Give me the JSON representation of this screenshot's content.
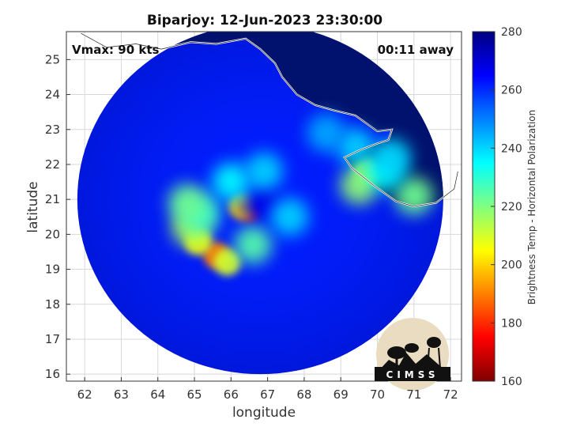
{
  "chart_data": {
    "type": "heatmap",
    "title": "Biparjoy: 12-Jun-2023 23:30:00",
    "xlabel": "longitude",
    "ylabel": "latitude",
    "xlim": [
      61.5,
      72.3
    ],
    "ylim": [
      15.8,
      25.8
    ],
    "x_ticks": [
      62,
      63,
      64,
      65,
      66,
      67,
      68,
      69,
      70,
      71,
      72
    ],
    "y_ticks": [
      16,
      17,
      18,
      19,
      20,
      21,
      22,
      23,
      24,
      25
    ],
    "grid": true,
    "annotations": {
      "vmax": "Vmax: 90 kts",
      "time_away": "00:11 away"
    },
    "colorbar": {
      "label": "Brightness Temp - Horizontal Polarization",
      "min": 160,
      "max": 280,
      "ticks": [
        160,
        180,
        200,
        220,
        240,
        260,
        280
      ],
      "colormap": [
        "#800000",
        "#ff0000",
        "#ff8000",
        "#ffff00",
        "#80ff80",
        "#00ffff",
        "#0080ff",
        "#0000ff",
        "#000080"
      ]
    },
    "swath": {
      "center": [
        66.8,
        21.0
      ],
      "radius_deg": 5.0,
      "background_value": 262
    },
    "features": [
      {
        "lon": 66.5,
        "lat": 20.6,
        "value": 175
      },
      {
        "lon": 66.3,
        "lat": 20.8,
        "value": 200
      },
      {
        "lon": 66.8,
        "lat": 20.9,
        "value": 268
      },
      {
        "lon": 65.6,
        "lat": 19.4,
        "value": 190
      },
      {
        "lon": 65.1,
        "lat": 19.8,
        "value": 205
      },
      {
        "lon": 64.9,
        "lat": 20.2,
        "value": 215
      },
      {
        "lon": 65.9,
        "lat": 19.2,
        "value": 210
      },
      {
        "lon": 66.6,
        "lat": 19.7,
        "value": 225
      },
      {
        "lon": 65.2,
        "lat": 20.6,
        "value": 228
      },
      {
        "lon": 64.8,
        "lat": 20.9,
        "value": 222
      },
      {
        "lon": 66.0,
        "lat": 21.5,
        "value": 235
      },
      {
        "lon": 66.9,
        "lat": 21.8,
        "value": 240
      },
      {
        "lon": 67.6,
        "lat": 20.5,
        "value": 240
      },
      {
        "lon": 69.7,
        "lat": 21.8,
        "value": 210
      },
      {
        "lon": 69.5,
        "lat": 21.4,
        "value": 218
      },
      {
        "lon": 71.0,
        "lat": 21.1,
        "value": 222
      },
      {
        "lon": 70.2,
        "lat": 21.8,
        "value": 235
      },
      {
        "lon": 69.4,
        "lat": 22.5,
        "value": 240
      },
      {
        "lon": 70.4,
        "lat": 22.2,
        "value": 240
      },
      {
        "lon": 68.6,
        "lat": 22.9,
        "value": 245
      }
    ],
    "coastline": [
      [
        61.9,
        25.75
      ],
      [
        62.6,
        25.35
      ],
      [
        63.4,
        25.45
      ],
      [
        64.1,
        25.3
      ],
      [
        64.9,
        25.5
      ],
      [
        65.6,
        25.45
      ],
      [
        66.4,
        25.6
      ],
      [
        66.8,
        25.3
      ],
      [
        67.2,
        24.9
      ],
      [
        67.4,
        24.5
      ],
      [
        67.8,
        24.0
      ],
      [
        68.3,
        23.7
      ],
      [
        68.8,
        23.55
      ],
      [
        69.4,
        23.4
      ],
      [
        70.0,
        22.95
      ],
      [
        70.4,
        23.0
      ],
      [
        70.3,
        22.7
      ],
      [
        70.0,
        22.6
      ],
      [
        69.5,
        22.4
      ],
      [
        69.1,
        22.2
      ],
      [
        69.3,
        21.9
      ],
      [
        69.9,
        21.4
      ],
      [
        70.5,
        20.95
      ],
      [
        71.0,
        20.8
      ],
      [
        71.6,
        20.9
      ],
      [
        72.1,
        21.3
      ],
      [
        72.2,
        21.8
      ]
    ],
    "logo": {
      "text": "CIMSS"
    }
  }
}
